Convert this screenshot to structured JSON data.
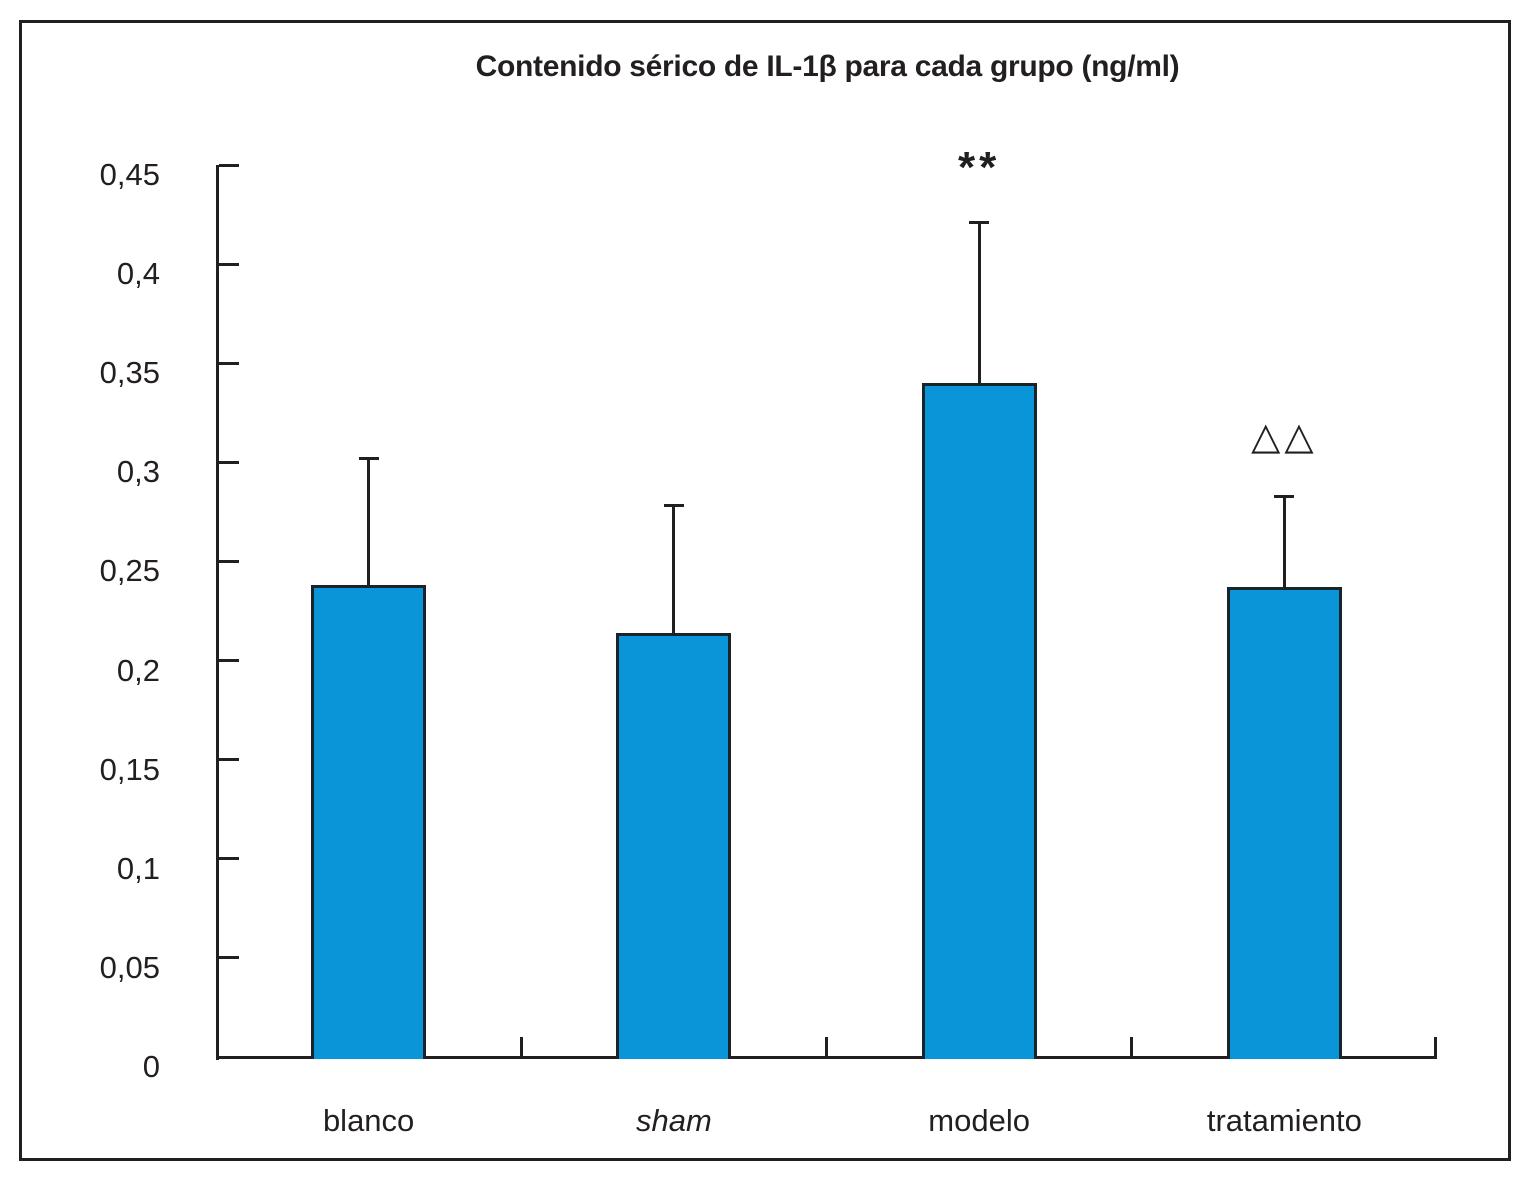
{
  "figure": {
    "background": "#ffffff",
    "border_color": "#231f20"
  },
  "chart_data": {
    "type": "bar",
    "title": "Contenido sérico de IL-1β para cada grupo (ng/ml)",
    "xlabel": "",
    "ylabel": "",
    "categories": [
      "blanco",
      "sham",
      "modelo",
      "tratamiento"
    ],
    "values": [
      0.238,
      0.214,
      0.34,
      0.237
    ],
    "error_plus": [
      0.064,
      0.064,
      0.081,
      0.046
    ],
    "italic_categories": [
      "sham"
    ],
    "annotations": [
      {
        "category": "modelo",
        "text": "**",
        "style": "stars"
      },
      {
        "category": "tratamiento",
        "text": "△△",
        "style": "triangles"
      }
    ],
    "ylim": [
      0,
      0.45
    ],
    "ytick_step": 0.05,
    "ytick_labels": [
      "0",
      "0,05",
      "0,1",
      "0,15",
      "0,2",
      "0,25",
      "0,3",
      "0,35",
      "0,4",
      "0,45"
    ],
    "decimal_separator": ",",
    "grid": false,
    "legend": false,
    "bar_color": "#0995d8",
    "bar_border_color": "#18242c",
    "axis_color": "#231f20"
  }
}
